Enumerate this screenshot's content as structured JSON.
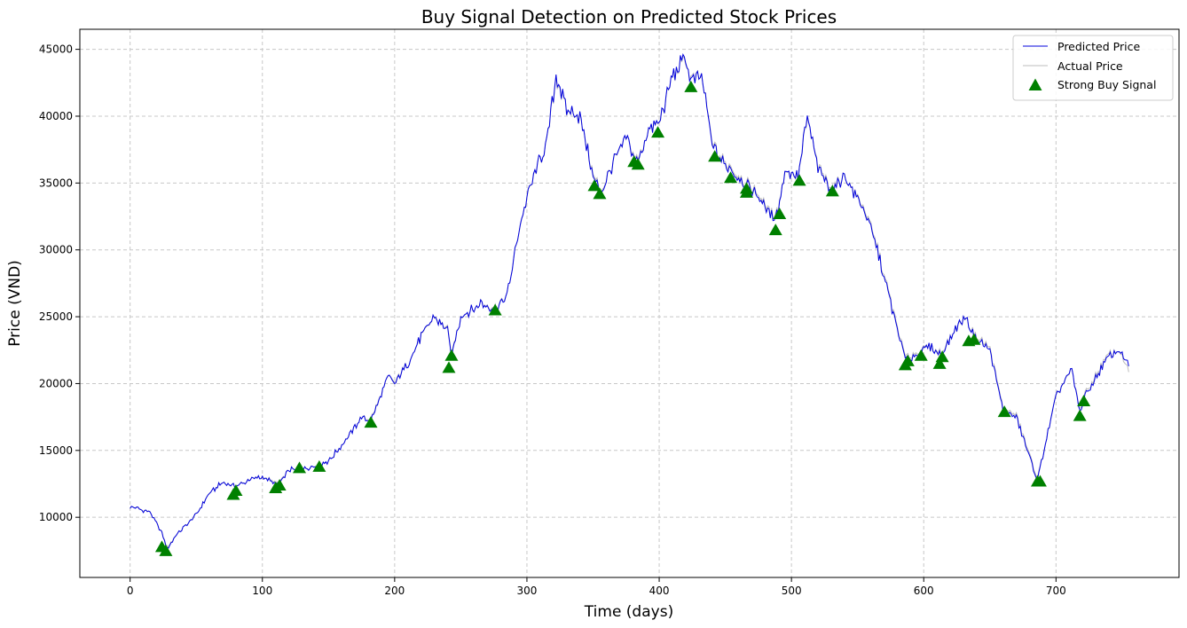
{
  "colors": {
    "predicted": "#0000dd",
    "actual": "#bdbdbd",
    "signal": "#008000",
    "grid": "#c8c8c8"
  },
  "chart_data": {
    "type": "line",
    "title": "Buy Signal Detection on Predicted Stock Prices",
    "xlabel": "Time (days)",
    "ylabel": "Price (VND)",
    "xlim": [
      -38,
      793
    ],
    "ylim": [
      5500,
      46500
    ],
    "xticks": [
      0,
      100,
      200,
      300,
      400,
      500,
      600,
      700
    ],
    "yticks": [
      10000,
      15000,
      20000,
      25000,
      30000,
      35000,
      40000,
      45000
    ],
    "grid": true,
    "legend_position": "upper right",
    "legend": [
      "Predicted Price",
      "Actual Price",
      "Strong Buy Signal"
    ],
    "series": [
      {
        "name": "Predicted Price",
        "style": "line",
        "anchors": [
          [
            0,
            10800
          ],
          [
            15,
            10400
          ],
          [
            24,
            8800
          ],
          [
            28,
            7600
          ],
          [
            35,
            8700
          ],
          [
            50,
            10200
          ],
          [
            60,
            11800
          ],
          [
            70,
            12600
          ],
          [
            80,
            12300
          ],
          [
            90,
            12800
          ],
          [
            100,
            13000
          ],
          [
            112,
            12400
          ],
          [
            120,
            13500
          ],
          [
            140,
            13800
          ],
          [
            150,
            14200
          ],
          [
            165,
            16000
          ],
          [
            175,
            17500
          ],
          [
            182,
            17200
          ],
          [
            195,
            20500
          ],
          [
            200,
            20000
          ],
          [
            210,
            21500
          ],
          [
            220,
            23500
          ],
          [
            230,
            25000
          ],
          [
            240,
            24000
          ],
          [
            243,
            22000
          ],
          [
            250,
            25000
          ],
          [
            265,
            26000
          ],
          [
            276,
            25600
          ],
          [
            285,
            26500
          ],
          [
            295,
            32000
          ],
          [
            305,
            35500
          ],
          [
            315,
            38000
          ],
          [
            322,
            43000
          ],
          [
            330,
            40500
          ],
          [
            340,
            40000
          ],
          [
            350,
            35500
          ],
          [
            356,
            34200
          ],
          [
            365,
            36500
          ],
          [
            375,
            38500
          ],
          [
            381,
            37000
          ],
          [
            384,
            36600
          ],
          [
            392,
            39000
          ],
          [
            400,
            39500
          ],
          [
            410,
            43000
          ],
          [
            420,
            44400
          ],
          [
            424,
            42500
          ],
          [
            432,
            43000
          ],
          [
            440,
            38000
          ],
          [
            444,
            37000
          ],
          [
            455,
            36000
          ],
          [
            465,
            35000
          ],
          [
            475,
            34000
          ],
          [
            485,
            32500
          ],
          [
            490,
            33000
          ],
          [
            495,
            36000
          ],
          [
            505,
            35500
          ],
          [
            512,
            40000
          ],
          [
            520,
            36000
          ],
          [
            532,
            34500
          ],
          [
            540,
            35500
          ],
          [
            555,
            33000
          ],
          [
            565,
            30000
          ],
          [
            575,
            26000
          ],
          [
            586,
            21800
          ],
          [
            597,
            22200
          ],
          [
            605,
            22800
          ],
          [
            613,
            22100
          ],
          [
            625,
            24300
          ],
          [
            632,
            25000
          ],
          [
            638,
            23500
          ],
          [
            650,
            22500
          ],
          [
            660,
            18000
          ],
          [
            670,
            17500
          ],
          [
            680,
            14500
          ],
          [
            686,
            12800
          ],
          [
            692,
            15500
          ],
          [
            700,
            19000
          ],
          [
            705,
            20000
          ],
          [
            712,
            21000
          ],
          [
            718,
            17800
          ],
          [
            722,
            19000
          ],
          [
            730,
            20500
          ],
          [
            740,
            22000
          ],
          [
            748,
            22500
          ],
          [
            755,
            21300
          ]
        ]
      },
      {
        "name": "Actual Price",
        "style": "line",
        "anchors": [
          [
            0,
            10750
          ],
          [
            15,
            10350
          ],
          [
            24,
            8750
          ],
          [
            28,
            7650
          ],
          [
            35,
            8650
          ],
          [
            50,
            10150
          ],
          [
            60,
            11750
          ],
          [
            70,
            12550
          ],
          [
            80,
            12250
          ],
          [
            90,
            12750
          ],
          [
            100,
            12950
          ],
          [
            112,
            12450
          ],
          [
            120,
            13450
          ],
          [
            140,
            13750
          ],
          [
            150,
            14150
          ],
          [
            165,
            15950
          ],
          [
            175,
            17450
          ],
          [
            182,
            17250
          ],
          [
            195,
            20400
          ],
          [
            200,
            20050
          ],
          [
            210,
            21450
          ],
          [
            220,
            23400
          ],
          [
            230,
            24900
          ],
          [
            240,
            24050
          ],
          [
            243,
            22100
          ],
          [
            250,
            24900
          ],
          [
            265,
            25950
          ],
          [
            276,
            25650
          ],
          [
            285,
            26450
          ],
          [
            295,
            31900
          ],
          [
            305,
            35400
          ],
          [
            315,
            37900
          ],
          [
            322,
            42800
          ],
          [
            330,
            40400
          ],
          [
            340,
            39900
          ],
          [
            350,
            35600
          ],
          [
            356,
            34300
          ],
          [
            365,
            36400
          ],
          [
            375,
            38400
          ],
          [
            381,
            37100
          ],
          [
            384,
            36700
          ],
          [
            392,
            38900
          ],
          [
            400,
            39400
          ],
          [
            410,
            42900
          ],
          [
            420,
            44200
          ],
          [
            424,
            42600
          ],
          [
            432,
            42900
          ],
          [
            440,
            38100
          ],
          [
            444,
            37100
          ],
          [
            455,
            36100
          ],
          [
            465,
            35100
          ],
          [
            475,
            34100
          ],
          [
            485,
            32600
          ],
          [
            490,
            33100
          ],
          [
            495,
            35900
          ],
          [
            505,
            35400
          ],
          [
            512,
            39800
          ],
          [
            520,
            36100
          ],
          [
            532,
            34600
          ],
          [
            540,
            35400
          ],
          [
            555,
            33100
          ],
          [
            565,
            30100
          ],
          [
            575,
            26100
          ],
          [
            586,
            21900
          ],
          [
            597,
            22300
          ],
          [
            605,
            22700
          ],
          [
            613,
            22200
          ],
          [
            625,
            24200
          ],
          [
            632,
            24900
          ],
          [
            638,
            23600
          ],
          [
            650,
            22600
          ],
          [
            660,
            18100
          ],
          [
            670,
            17600
          ],
          [
            680,
            14600
          ],
          [
            686,
            12900
          ],
          [
            692,
            15400
          ],
          [
            700,
            18900
          ],
          [
            705,
            19900
          ],
          [
            712,
            20900
          ],
          [
            718,
            17900
          ],
          [
            722,
            19100
          ],
          [
            730,
            20600
          ],
          [
            740,
            22100
          ],
          [
            748,
            22400
          ],
          [
            755,
            20800
          ]
        ]
      },
      {
        "name": "Strong Buy Signal",
        "style": "marker",
        "points": [
          [
            24,
            7800
          ],
          [
            27,
            7500
          ],
          [
            78,
            11700
          ],
          [
            80,
            12000
          ],
          [
            110,
            12200
          ],
          [
            113,
            12400
          ],
          [
            128,
            13700
          ],
          [
            143,
            13800
          ],
          [
            182,
            17100
          ],
          [
            241,
            21200
          ],
          [
            243,
            22100
          ],
          [
            276,
            25500
          ],
          [
            351,
            34800
          ],
          [
            355,
            34200
          ],
          [
            381,
            36600
          ],
          [
            384,
            36400
          ],
          [
            399,
            38800
          ],
          [
            424,
            42200
          ],
          [
            442,
            37000
          ],
          [
            454,
            35400
          ],
          [
            466,
            34300
          ],
          [
            466,
            34600
          ],
          [
            488,
            31500
          ],
          [
            491,
            32700
          ],
          [
            506,
            35200
          ],
          [
            531,
            34400
          ],
          [
            586,
            21400
          ],
          [
            588,
            21700
          ],
          [
            598,
            22100
          ],
          [
            612,
            21500
          ],
          [
            614,
            22000
          ],
          [
            634,
            23200
          ],
          [
            638,
            23300
          ],
          [
            661,
            17900
          ],
          [
            686,
            12700
          ],
          [
            688,
            12700
          ],
          [
            718,
            17600
          ],
          [
            721,
            18700
          ]
        ]
      }
    ]
  }
}
